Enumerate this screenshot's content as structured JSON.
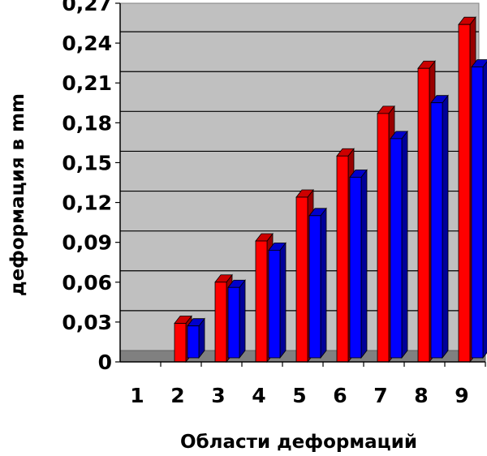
{
  "chart_data": {
    "type": "bar",
    "title": "",
    "xlabel": "Области деформаций",
    "ylabel": "деформация в mm",
    "categories": [
      "1",
      "2",
      "3",
      "4",
      "5",
      "6",
      "7",
      "8",
      "9"
    ],
    "yticks": [
      "0",
      "0,03",
      "0,06",
      "0,09",
      "0,12",
      "0,15",
      "0,18",
      "0,21",
      "0,24",
      "0,27"
    ],
    "ylim": [
      0,
      0.27
    ],
    "grid": true,
    "legend": "none",
    "style": "3d-clustered-bar",
    "series": [
      {
        "color": "#ff0000",
        "values": [
          0,
          0.029,
          0.06,
          0.091,
          0.124,
          0.155,
          0.187,
          0.221,
          0.254
        ]
      },
      {
        "color": "#0000ff",
        "values": [
          0,
          0.024,
          0.053,
          0.081,
          0.107,
          0.136,
          0.165,
          0.192,
          0.219
        ]
      }
    ]
  }
}
